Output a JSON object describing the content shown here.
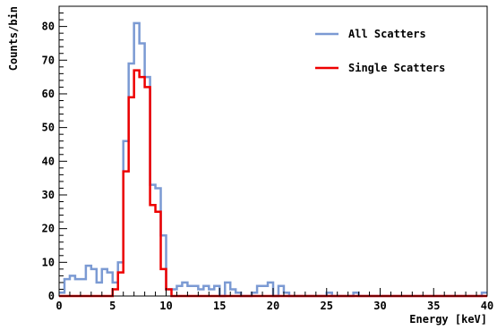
{
  "chart_data": {
    "type": "line",
    "style": "step-histogram",
    "xlabel": "Energy [keV]",
    "ylabel": "Counts/bin",
    "xlim": [
      0,
      40
    ],
    "ylim": [
      0,
      86
    ],
    "x_ticks": [
      0,
      5,
      10,
      15,
      20,
      25,
      30,
      35,
      40
    ],
    "y_ticks": [
      0,
      10,
      20,
      30,
      40,
      50,
      60,
      70,
      80
    ],
    "grid": false,
    "legend_position": "top-right",
    "bin_edges_start": 0,
    "bin_width": 0.5,
    "series": [
      {
        "name": "All Scatters",
        "color": "#7b9ad3",
        "values": [
          1,
          5,
          6,
          5,
          5,
          9,
          8,
          4,
          8,
          7,
          4,
          10,
          46,
          69,
          81,
          75,
          65,
          33,
          32,
          18,
          2,
          2,
          3,
          4,
          3,
          3,
          2,
          3,
          2,
          3,
          0,
          4,
          2,
          1,
          0,
          0,
          1,
          3,
          3,
          4,
          0,
          3,
          1,
          0,
          0,
          0,
          0,
          0,
          0,
          0,
          1,
          0,
          0,
          0,
          0,
          1,
          0,
          0,
          0,
          0,
          0,
          0,
          0,
          0,
          0,
          0,
          0,
          0,
          0,
          0,
          0,
          0,
          0,
          0,
          0,
          0,
          0,
          0,
          0,
          1
        ]
      },
      {
        "name": "Single Scatters",
        "color": "#ee0000",
        "values": [
          0,
          0,
          0,
          0,
          0,
          0,
          0,
          0,
          0,
          0,
          2,
          7,
          37,
          59,
          67,
          65,
          62,
          27,
          25,
          8,
          2,
          0,
          0,
          0,
          0,
          0,
          0,
          0,
          0,
          0,
          0,
          0,
          0,
          0,
          0,
          0,
          0,
          0,
          0,
          0,
          0,
          0,
          0,
          0,
          0,
          0,
          0,
          0,
          0,
          0,
          0,
          0,
          0,
          0,
          0,
          0,
          0,
          0,
          0,
          0,
          0,
          0,
          0,
          0,
          0,
          0,
          0,
          0,
          0,
          0,
          0,
          0,
          0,
          0,
          0,
          0,
          0,
          0,
          0,
          0
        ]
      }
    ]
  }
}
